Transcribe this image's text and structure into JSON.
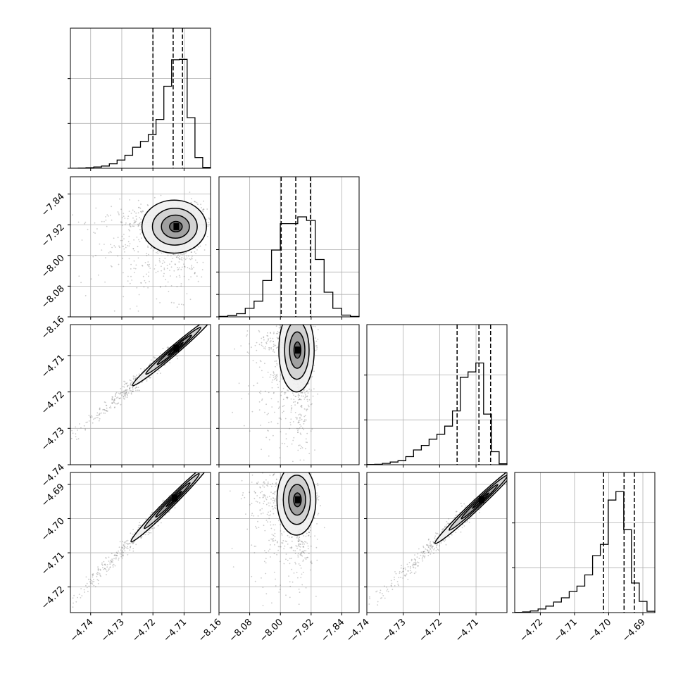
{
  "chart_data": {
    "type": "corner",
    "parameters": [
      {
        "ticks": [
          -4.74,
          -4.73,
          -4.72,
          -4.71
        ],
        "range": [
          -4.7465,
          -4.7015
        ],
        "tick_labels": [
          "−4.74",
          "−4.73",
          "−4.72",
          "−4.71"
        ],
        "quantiles": [
          -4.72,
          -4.7135,
          -4.7105
        ]
      },
      {
        "ticks": [
          -8.16,
          -8.08,
          -8.0,
          -7.92,
          -7.84
        ],
        "range": [
          -8.16,
          -7.795
        ],
        "tick_labels": [
          "−8.16",
          "−8.08",
          "−8.00",
          "−7.92",
          "−7.84"
        ],
        "quantiles": [
          -7.998,
          -7.96,
          -7.922
        ]
      },
      {
        "ticks": [
          -4.74,
          -4.73,
          -4.72,
          -4.71
        ],
        "range": [
          -4.74,
          -4.7015
        ],
        "tick_labels": [
          "−4.74",
          "−4.73",
          "−4.72",
          "−4.71"
        ],
        "quantiles": [
          -4.7152,
          -4.7092,
          -4.706
        ]
      },
      {
        "ticks": [
          -4.72,
          -4.71,
          -4.7,
          -4.69
        ],
        "range": [
          -4.7275,
          -4.6865
        ],
        "tick_labels": [
          "−4.72",
          "−4.71",
          "−4.70",
          "−4.69"
        ],
        "quantiles": [
          -4.7015,
          -4.6955,
          -4.6925
        ]
      }
    ],
    "histograms": [
      {
        "parameter": 0,
        "max": 1000,
        "y_ticks": [
          0,
          500,
          1000
        ],
        "values": [
          1,
          2,
          6,
          14,
          25,
          50,
          92,
          145,
          235,
          300,
          375,
          545,
          915,
          1210,
          1215,
          565,
          120,
          10
        ]
      },
      {
        "parameter": 1,
        "max": 1000,
        "y_ticks": [
          0,
          250,
          500,
          750
        ],
        "values": [
          5,
          14,
          35,
          95,
          175,
          405,
          745,
          1040,
          1040,
          1115,
          1075,
          640,
          275,
          95,
          20,
          5
        ]
      },
      {
        "parameter": 2,
        "max": 1000,
        "y_ticks": [
          0,
          500,
          1000
        ],
        "values": [
          2,
          5,
          15,
          30,
          45,
          90,
          165,
          215,
          285,
          340,
          430,
          600,
          975,
          1035,
          1135,
          565,
          145,
          10
        ]
      },
      {
        "parameter": 3,
        "max": 1000,
        "y_ticks": [
          0,
          500,
          1000
        ],
        "values": [
          2,
          8,
          18,
          40,
          72,
          118,
          165,
          235,
          295,
          420,
          635,
          760,
          1255,
          1350,
          925,
          330,
          125,
          15
        ]
      }
    ],
    "pairs": [
      {
        "x": 0,
        "y": 1,
        "peak": [
          -4.7125,
          -7.925
        ],
        "sd": [
          0.0045,
          0.03
        ],
        "corr": 0.2
      },
      {
        "x": 0,
        "y": 2,
        "peak": [
          -4.7125,
          -4.708
        ],
        "sd": [
          0.0055,
          0.004
        ],
        "corr": 0.995
      },
      {
        "x": 1,
        "y": 2,
        "peak": [
          -7.955,
          -4.7085
        ],
        "sd": [
          0.02,
          0.005
        ],
        "corr": 0.1
      },
      {
        "x": 0,
        "y": 3,
        "peak": [
          -4.713,
          -4.694
        ],
        "sd": [
          0.0055,
          0.005
        ],
        "corr": 0.995
      },
      {
        "x": 1,
        "y": 3,
        "peak": [
          -7.955,
          -4.6945
        ],
        "sd": [
          0.022,
          0.0045
        ],
        "corr": 0.1
      },
      {
        "x": 2,
        "y": 3,
        "peak": [
          -4.7085,
          -4.6945
        ],
        "sd": [
          0.005,
          0.005
        ],
        "corr": 0.995
      }
    ],
    "grid": true,
    "colors": {
      "hist": "#000000",
      "scatter": "#444444",
      "contour": "#000000",
      "frame": "#000000",
      "grid": "#b0b0b0"
    }
  }
}
